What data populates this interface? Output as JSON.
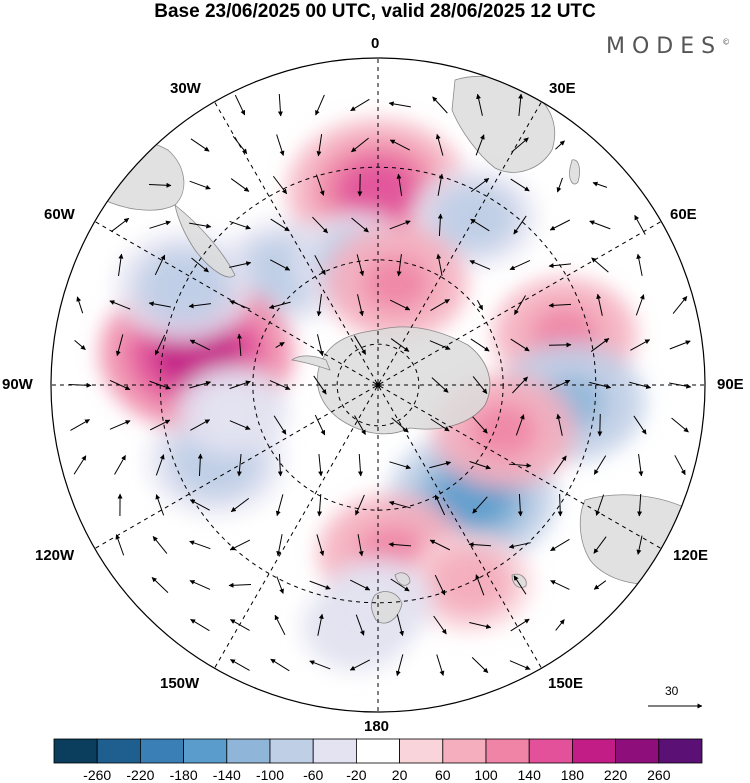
{
  "title": "Base 23/06/2025 00 UTC, valid 28/06/2025 12 UTC",
  "brand": "MODES",
  "brand_mark": "©",
  "longitude_labels": {
    "lon_0": "0",
    "lon_30e": "30E",
    "lon_60e": "60E",
    "lon_90e": "90E",
    "lon_120e": "120E",
    "lon_150e": "150E",
    "lon_180": "180",
    "lon_150w": "150W",
    "lon_120w": "120W",
    "lon_90w": "90W",
    "lon_60w": "60W",
    "lon_30w": "30W"
  },
  "reference_vector": {
    "value": "30"
  },
  "colorbar": {
    "labels": [
      "-260",
      "-220",
      "-180",
      "-140",
      "-100",
      "-60",
      "-20",
      "20",
      "60",
      "100",
      "140",
      "180",
      "220",
      "260"
    ],
    "colors": [
      "#0b3d5c",
      "#1f5f8f",
      "#3a7fb6",
      "#5a9ccc",
      "#8fb6d8",
      "#bfcfe6",
      "#e3e3f1",
      "#ffffff",
      "#f9d4da",
      "#f4aebd",
      "#ef84a6",
      "#e2519a",
      "#c21c86",
      "#8e0f7c",
      "#5a1075"
    ]
  },
  "map": {
    "projection": "south polar stereographic",
    "land_color": "#e3e3e3",
    "anomalies": [
      {
        "lat": -45,
        "lon": 0,
        "value": 170
      },
      {
        "lat": -55,
        "lon": -40,
        "value": -90
      },
      {
        "lat": -60,
        "lon": -10,
        "value": -80
      },
      {
        "lat": -45,
        "lon": 30,
        "value": -80
      },
      {
        "lat": -65,
        "lon": 10,
        "value": 110
      },
      {
        "lat": -45,
        "lon": 75,
        "value": 110
      },
      {
        "lat": -45,
        "lon": 95,
        "value": -120
      },
      {
        "lat": -55,
        "lon": 140,
        "value": -150
      },
      {
        "lat": -58,
        "lon": 110,
        "value": 110
      },
      {
        "lat": -50,
        "lon": 175,
        "value": 120
      },
      {
        "lat": -40,
        "lon": 155,
        "value": 80
      },
      {
        "lat": -48,
        "lon": -115,
        "value": -100
      },
      {
        "lat": -47,
        "lon": -80,
        "value": 190
      },
      {
        "lat": -40,
        "lon": -63,
        "value": -100
      },
      {
        "lat": -55,
        "lon": -100,
        "value": -60
      },
      {
        "lat": -35,
        "lon": -175,
        "value": -60
      },
      {
        "lat": -40,
        "lon": 180,
        "value": -60
      }
    ]
  }
}
